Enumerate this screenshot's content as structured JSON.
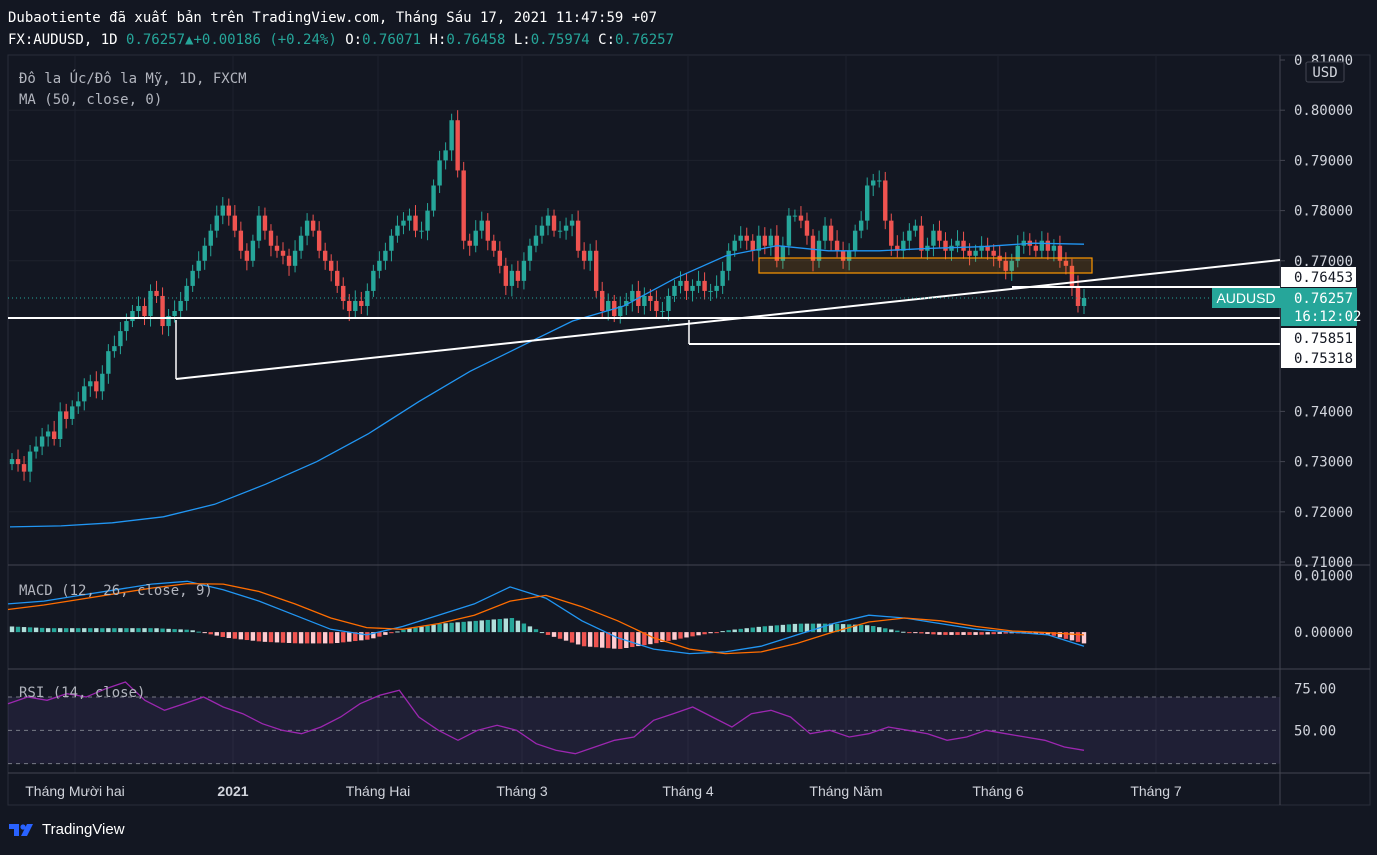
{
  "header": {
    "line1": "Dubaotiente đã xuất bản trên TradingView.com, Tháng Sáu 17, 2021 11:47:59 +07",
    "symbol": "FX:AUDUSD, 1D",
    "last": "0.76257",
    "arrow": "▲",
    "change": "+0.00186 (+0.24%)",
    "o_label": "O:",
    "o": "0.76071",
    "h_label": "H:",
    "h": "0.76458",
    "l_label": "L:",
    "l": "0.75974",
    "c_label": "C:",
    "c": "0.76257"
  },
  "legend": {
    "main": "Đô la Úc/Đô la Mỹ, 1D, FXCM",
    "ma": "MA (50, close, 0)",
    "macd": "MACD (12, 26, close, 9)",
    "rsi": "RSI (14, close)"
  },
  "colors": {
    "background": "#131722",
    "up": "#26a69a",
    "down": "#ef5350",
    "ma": "#2196f3",
    "macd_line": "#2196f3",
    "signal_line": "#ff6d00",
    "rsi": "#9c27b0",
    "zone": "#ff9800"
  },
  "footer": {
    "brand": "TradingView",
    "logo_icon": "tradingview-logo-icon"
  },
  "chart_data": [
    {
      "type": "candlestick",
      "pane": "price",
      "title": "Đô la Úc/Đô la Mỹ, 1D, FXCM",
      "currency": "USD",
      "ylim": [
        0.71,
        0.81
      ],
      "y_ticks": [
        "0.81000",
        "0.80000",
        "0.79000",
        "0.78000",
        "0.77000",
        "0.76453",
        "0.75851",
        "0.75318",
        "0.74000",
        "0.73000",
        "0.72000",
        "0.71000"
      ],
      "x_ticks": [
        "Tháng Mười hai",
        "2021",
        "Tháng Hai",
        "Tháng 3",
        "Tháng 4",
        "Tháng Năm",
        "Tháng 6",
        "Tháng 7"
      ],
      "last_label": {
        "symbol": "AUDUSD",
        "price": "0.76257",
        "countdown": "16:12:02"
      },
      "levels": [
        "0.76453",
        "0.75851",
        "0.75318"
      ],
      "closes": [
        0.7305,
        0.7295,
        0.728,
        0.732,
        0.733,
        0.735,
        0.736,
        0.7345,
        0.74,
        0.7385,
        0.741,
        0.742,
        0.745,
        0.746,
        0.744,
        0.7475,
        0.752,
        0.753,
        0.756,
        0.758,
        0.76,
        0.761,
        0.759,
        0.764,
        0.763,
        0.757,
        0.759,
        0.76,
        0.762,
        0.765,
        0.768,
        0.77,
        0.773,
        0.776,
        0.779,
        0.781,
        0.779,
        0.776,
        0.772,
        0.77,
        0.774,
        0.779,
        0.776,
        0.773,
        0.772,
        0.771,
        0.769,
        0.772,
        0.775,
        0.778,
        0.776,
        0.772,
        0.77,
        0.768,
        0.765,
        0.762,
        0.76,
        0.762,
        0.761,
        0.764,
        0.768,
        0.77,
        0.772,
        0.775,
        0.777,
        0.778,
        0.779,
        0.776,
        0.776,
        0.78,
        0.785,
        0.79,
        0.792,
        0.798,
        0.788,
        0.774,
        0.773,
        0.776,
        0.778,
        0.774,
        0.772,
        0.769,
        0.765,
        0.768,
        0.766,
        0.77,
        0.773,
        0.775,
        0.777,
        0.779,
        0.776,
        0.776,
        0.777,
        0.778,
        0.772,
        0.77,
        0.772,
        0.764,
        0.76,
        0.762,
        0.759,
        0.761,
        0.762,
        0.764,
        0.761,
        0.763,
        0.762,
        0.76,
        0.76,
        0.763,
        0.765,
        0.766,
        0.764,
        0.765,
        0.766,
        0.764,
        0.764,
        0.765,
        0.768,
        0.772,
        0.774,
        0.775,
        0.774,
        0.772,
        0.775,
        0.773,
        0.775,
        0.77,
        0.773,
        0.779,
        0.779,
        0.778,
        0.775,
        0.77,
        0.774,
        0.777,
        0.774,
        0.772,
        0.77,
        0.772,
        0.776,
        0.778,
        0.785,
        0.786,
        0.786,
        0.778,
        0.773,
        0.772,
        0.774,
        0.776,
        0.777,
        0.772,
        0.773,
        0.776,
        0.774,
        0.772,
        0.773,
        0.774,
        0.772,
        0.771,
        0.772,
        0.773,
        0.772,
        0.771,
        0.77,
        0.768,
        0.77,
        0.773,
        0.774,
        0.773,
        0.772,
        0.774,
        0.772,
        0.773,
        0.77,
        0.769,
        0.765,
        0.761,
        0.7626
      ],
      "series": [
        {
          "name": "MA (50, close, 0)",
          "values": [
            0.717,
            0.7172,
            0.7178,
            0.719,
            0.7215,
            0.7255,
            0.73,
            0.7355,
            0.742,
            0.748,
            0.753,
            0.758,
            0.761,
            0.7665,
            0.771,
            0.773,
            0.772,
            0.772,
            0.7725,
            0.7728,
            0.7735,
            0.7733
          ]
        }
      ]
    },
    {
      "type": "bar+line",
      "pane": "macd",
      "title": "MACD (12, 26, close, 9)",
      "ylim": [
        -0.006,
        0.011
      ],
      "y_ticks": [
        "0.01000",
        "0.00000"
      ],
      "macd": [
        0.005,
        0.0055,
        0.0065,
        0.0075,
        0.0085,
        0.009,
        0.0075,
        0.0055,
        0.003,
        0.0005,
        -0.0005,
        0.001,
        0.003,
        0.005,
        0.008,
        0.006,
        0.002,
        -0.001,
        -0.003,
        -0.0038,
        -0.0035,
        -0.0025,
        -0.0005,
        0.0015,
        0.003,
        0.0025,
        0.0015,
        0.0005,
        0.0,
        -0.0005,
        -0.0025
      ],
      "signal": [
        0.004,
        0.0048,
        0.0058,
        0.0068,
        0.0078,
        0.0086,
        0.0085,
        0.0072,
        0.005,
        0.0025,
        0.0008,
        0.0005,
        0.0015,
        0.003,
        0.0055,
        0.0065,
        0.0045,
        0.002,
        -0.001,
        -0.003,
        -0.0038,
        -0.0035,
        -0.002,
        0.0,
        0.0018,
        0.0025,
        0.002,
        0.001,
        0.0002,
        -0.0001,
        -0.0005
      ]
    },
    {
      "type": "line",
      "pane": "rsi",
      "title": "RSI (14, close)",
      "ylim": [
        25,
        85
      ],
      "y_ticks": [
        "75.00",
        "50.00"
      ],
      "bands": [
        70,
        50,
        30
      ],
      "values": [
        66,
        70,
        68,
        72,
        70,
        75,
        79,
        68,
        62,
        66,
        70,
        64,
        60,
        54,
        50,
        48,
        52,
        58,
        66,
        71,
        74,
        58,
        50,
        44,
        50,
        53,
        50,
        42,
        38,
        36,
        40,
        44,
        46,
        56,
        60,
        64,
        58,
        52,
        60,
        62,
        58,
        48,
        50,
        46,
        48,
        52,
        50,
        48,
        44,
        46,
        50,
        48,
        46,
        44,
        40,
        38
      ]
    }
  ]
}
